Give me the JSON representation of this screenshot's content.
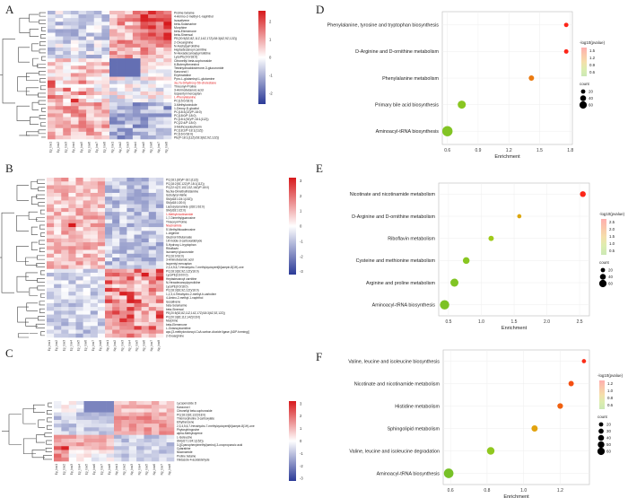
{
  "figure": {
    "panels": [
      "A",
      "B",
      "C",
      "D",
      "E",
      "F"
    ]
  },
  "chart_data": [
    {
      "id": "A",
      "type": "heatmap",
      "title": "",
      "color_scale": {
        "low": "#2b3a97",
        "mid": "#ffffff",
        "high": "#d7191c",
        "ticks": [
          "2",
          "1",
          "0",
          "-1",
          "-2"
        ],
        "range": [
          -2.6,
          2.6
        ]
      },
      "columns": [
        "Ep_low1",
        "Ep_low2",
        "Ep_low3",
        "Ep_low4",
        "Ep_low5",
        "Ep_low6",
        "Ep_low7",
        "Ep_low8",
        "Np_low1",
        "Np_low2",
        "Np_low3",
        "Np_low4",
        "Np_low5",
        "Np_low6",
        "Np_low7",
        "Np_low8"
      ],
      "rows": [
        "Proline betaine",
        "4-Amino-2-methyl-1-naphthol",
        "Isosativene",
        "beta-Solamarine",
        "Morphine",
        "beta-Elemenone",
        "beta-Sinensal",
        "PE(20:5(5Z,8Z,11Z,14Z,17Z)/18:3(6Z,9Z,12Z))",
        "2-Oxoarginine",
        "N-Acetylpyrrolidine",
        "Heptadecanoyl carnitine",
        "N-Hexadecanoylpyrrolidine",
        "LysoPE(0:0/18:0)",
        "Citronellyl beta-sophoroside",
        "6-Butenylhexestrol",
        "Tetrahydroaldosterone-3-glucuronide",
        "Kanzonol I",
        "Erythratidine",
        "Pyro-L-glutaminyl-L-glutamine",
        "3a,7a-Dihydroxy-5b-cholestane",
        "Threonyl-Proline",
        "3-Aminobutanoic acid",
        "Isopentyl mercaptan",
        "L-Phenylalanine",
        "PC(15:0/18:0)",
        "3-Methyloxindole",
        "1-Deoxy-D-glucitol",
        "PC(18:3(2Z)/P-18:0)",
        "PC(18:0/P-18:0)",
        "PC(18:1(9Z)/P-18:1(11Z))",
        "PC(22:4/P-18:0)",
        "3-Methoxyeleutherin",
        "PC(18:2/P-18:1(11Z))",
        "PC(16:0/18:0)",
        "PE(P-18:1(11Z)/18:3(6Z,9Z,12Z))"
      ],
      "highlighted_rows": [
        "3a,7a-Dihydroxy-5b-cholestane",
        "L-Phenylalanine"
      ]
    },
    {
      "id": "B",
      "type": "heatmap",
      "color_scale": {
        "low": "#2b3a97",
        "mid": "#ffffff",
        "high": "#d7191c",
        "ticks": [
          "3",
          "2",
          "1",
          "0",
          "-1",
          "-2",
          "-3"
        ],
        "range": [
          -3.2,
          3.2
        ]
      },
      "columns": [
        "Ep_low1",
        "Ep_low2",
        "Ep_low3",
        "Ep_low4",
        "Ep_low5",
        "Ep_low6",
        "Ep_low7",
        "Ep_low8",
        "Np_low1",
        "Np_low2",
        "Np_low3",
        "Np_low4",
        "Np_low5",
        "Np_low6",
        "Np_low7",
        "Np_low8"
      ],
      "rows": [
        "PC(18:1(9Z)/P-18:1(11Z))",
        "PC(18:2(9Z,12Z)/P-18:1(11Z))",
        "PC(22:4(7Z,10Z,13Z,16Z)/P-18:0)",
        "Na,Na-Dimethylhistamine",
        "Isobutyryl-Valine",
        "SM(d18:1/24:1(15Z))",
        "SM(d18:1/20:0)",
        "Lactosylceramide (d18:1/16:0)",
        "SM(d18:1/22:0)",
        "1-Methylnicotinamide",
        "1,7-Dimethylguanosine",
        "Threonyl-Proline",
        "Niacinamide",
        "5'-Methylthioadenosine",
        "L-Arginine",
        "Glycinol tributanoate",
        "1H-Indole-3-carboxaldehyde",
        "5-Hydroxy-L-tryptophan",
        "Riboflavin",
        "Isovaleryl glucuronide",
        "PC(16:0/16:0)",
        "3-Aminobutanoic acid",
        "Isopentyl mercaptan",
        "2,3,4,5,6,7-Hexahydro-7-methylcyclopent[b]azepin-8(1H)-one",
        "PC(18:3(6Z,9Z,12Z)/18:0)",
        "LysoPE(16:0/0:0)",
        "Heptadecanoyl carnitine",
        "N-Hexadecanoylpyrrolidine",
        "LysoPE(0:0/18:0)",
        "PC(18:3(6Z,9Z,12Z)/18:0)",
        "1,2,3,4-Tetrahydro-2-methyl-b-carboline",
        "4-Amino-2-methyl-1-naphthol",
        "Isosativene",
        "beta-Solamarine",
        "beta-Sinensal",
        "PE(20:5(5Z,8Z,11Z,14Z,17Z)/18:3(6Z,9Z,12Z))",
        "PC(20:3(8Z,11Z,14Z)/16:0)",
        "Morphine",
        "beta-Elemenone",
        "L-Octanoylcarnitine",
        "apo-[3-methylcrotonoyl-CoA:carbon-dioxide ligase (ADP-forming)]",
        "2-Oxoarginine"
      ],
      "highlighted_rows": [
        "1-Methylnicotinamide",
        "Niacinamide"
      ]
    },
    {
      "id": "C",
      "type": "heatmap",
      "color_scale": {
        "low": "#2b3a97",
        "mid": "#ffffff",
        "high": "#d7191c",
        "ticks": [
          "3",
          "2",
          "1",
          "0",
          "-1",
          "-2",
          "-3"
        ],
        "range": [
          -3.2,
          3.2
        ]
      },
      "columns": [
        "Ep_low1",
        "Ep_low2",
        "Ep_low3",
        "Ep_low4",
        "Ep_low5",
        "Ep_low6",
        "Ep_low7",
        "Ep_low8",
        "Np_low1",
        "Np_low2",
        "Np_low3",
        "Np_low4",
        "Np_low5",
        "Np_low6",
        "Np_low7",
        "Np_low8"
      ],
      "rows": [
        "Lycoperoside D",
        "Kanzonol I",
        "Citronellyl beta-sophoroside",
        "PC(18:2(9Z,12Z)/18:0)",
        "Thiomorpholine 3-carboxylate",
        "Ethylbenzene",
        "2,3,4,5,6,7-Hexahydro-7-methylcyclopent[b]azepin-8(1H)-one",
        "Phytosphingosine",
        "alpha-Methylstyrene",
        "L-Isoleucine",
        "SM(d17:1/24:1(15Z))",
        "3-[(Cyanophenylmethyl)amino]-3-oxopropanoic acid",
        "Cytarabine",
        "Niacinamide",
        "Proline betaine",
        "Imidazole-4-acetaldehyde"
      ],
      "highlighted_rows": []
    },
    {
      "id": "D",
      "type": "scatter",
      "xlabel": "Enrichment",
      "ylabel": "",
      "xlim": [
        0.55,
        1.82
      ],
      "xticks": [
        0.6,
        0.9,
        1.2,
        1.5,
        1.8
      ],
      "categories": [
        "Phenylalanine, tyrosine and tryptophan biosynthesis",
        "D-Arginine and D-ornithine metabolism",
        "Phenylalanine metabolism",
        "Primary bile acid biosynthesis",
        "Aminoacyl-tRNA biosynthesis"
      ],
      "points": [
        {
          "pathway": "Phenylalanine, tyrosine and tryptophan biosynthesis",
          "enrichment": 1.76,
          "neg_log10_p": 1.75,
          "count": 14
        },
        {
          "pathway": "D-Arginine and D-ornithine metabolism",
          "enrichment": 1.76,
          "neg_log10_p": 1.75,
          "count": 14
        },
        {
          "pathway": "Phenylalanine metabolism",
          "enrichment": 1.42,
          "neg_log10_p": 1.35,
          "count": 22
        },
        {
          "pathway": "Primary bile acid biosynthesis",
          "enrichment": 0.74,
          "neg_log10_p": 0.7,
          "count": 46
        },
        {
          "pathway": "Aminoacyl-tRNA biosynthesis",
          "enrichment": 0.6,
          "neg_log10_p": 0.65,
          "count": 66
        }
      ],
      "color_legend": {
        "title": "-log10(pvalue)",
        "ticks": [
          "1.5",
          "1.2",
          "0.9",
          "0.6"
        ],
        "range": [
          0.5,
          1.8
        ]
      },
      "size_legend": {
        "title": "count",
        "values": [
          "20",
          "40",
          "60"
        ]
      }
    },
    {
      "id": "E",
      "type": "scatter",
      "xlabel": "Enrichment",
      "ylabel": "",
      "xlim": [
        0.35,
        2.65
      ],
      "xticks": [
        0.5,
        1.0,
        1.5,
        2.0,
        2.5
      ],
      "categories": [
        "Nicotinate and nicotinamide metabolism",
        "D-Arginine and D-ornithine metabolism",
        "Riboflavin metabolism",
        "Cysteine and methionine metabolism",
        "Arginine and proline metabolism",
        "Aminoacyl-tRNA biosynthesis"
      ],
      "points": [
        {
          "pathway": "Nicotinate and nicotinamide metabolism",
          "enrichment": 2.55,
          "neg_log10_p": 2.6,
          "count": 26
        },
        {
          "pathway": "D-Arginine and D-ornithine metabolism",
          "enrichment": 1.58,
          "neg_log10_p": 1.5,
          "count": 12
        },
        {
          "pathway": "Riboflavin metabolism",
          "enrichment": 1.15,
          "neg_log10_p": 1.0,
          "count": 22
        },
        {
          "pathway": "Cysteine and methionine metabolism",
          "enrichment": 0.77,
          "neg_log10_p": 0.75,
          "count": 34
        },
        {
          "pathway": "Arginine and proline metabolism",
          "enrichment": 0.59,
          "neg_log10_p": 0.65,
          "count": 46
        },
        {
          "pathway": "Aminoacyl-tRNA biosynthesis",
          "enrichment": 0.44,
          "neg_log10_p": 0.6,
          "count": 58
        }
      ],
      "color_legend": {
        "title": "-log10(pvalue)",
        "ticks": [
          "2.5",
          "2.0",
          "1.5",
          "1.0",
          "0.5"
        ],
        "range": [
          0.4,
          2.7
        ]
      },
      "size_legend": {
        "title": "count",
        "values": [
          "20",
          "40",
          "60"
        ]
      }
    },
    {
      "id": "F",
      "type": "scatter",
      "xlabel": "Enrichment",
      "ylabel": "",
      "xlim": [
        0.56,
        1.36
      ],
      "xticks": [
        0.6,
        0.8,
        1.0,
        1.2
      ],
      "categories": [
        "Valine, leucine and isoleucine biosynthesis",
        "Nicotinate and nicotinamide metabolism",
        "Histidine metabolism",
        "Sphingolipid metabolism",
        "Valine, leucine and isoleucine degradation",
        "Aminoacyl-tRNA biosynthesis"
      ],
      "points": [
        {
          "pathway": "Valine, leucine and isoleucine biosynthesis",
          "enrichment": 1.33,
          "neg_log10_p": 1.3,
          "count": 12
        },
        {
          "pathway": "Nicotinate and nicotinamide metabolism",
          "enrichment": 1.26,
          "neg_log10_p": 1.2,
          "count": 22
        },
        {
          "pathway": "Histidine metabolism",
          "enrichment": 1.2,
          "neg_log10_p": 1.15,
          "count": 24
        },
        {
          "pathway": "Sphingolipid metabolism",
          "enrichment": 1.06,
          "neg_log10_p": 0.95,
          "count": 30
        },
        {
          "pathway": "Valine, leucine and isoleucine degradation",
          "enrichment": 0.82,
          "neg_log10_p": 0.7,
          "count": 42
        },
        {
          "pathway": "Aminoacyl-tRNA biosynthesis",
          "enrichment": 0.59,
          "neg_log10_p": 0.6,
          "count": 60
        }
      ],
      "color_legend": {
        "title": "-log10(pvalue)",
        "ticks": [
          "1.2",
          "1.0",
          "0.8",
          "0.6"
        ],
        "range": [
          0.55,
          1.35
        ]
      },
      "size_legend": {
        "title": "count",
        "values": [
          "20",
          "30",
          "40",
          "50",
          "60"
        ]
      }
    }
  ]
}
